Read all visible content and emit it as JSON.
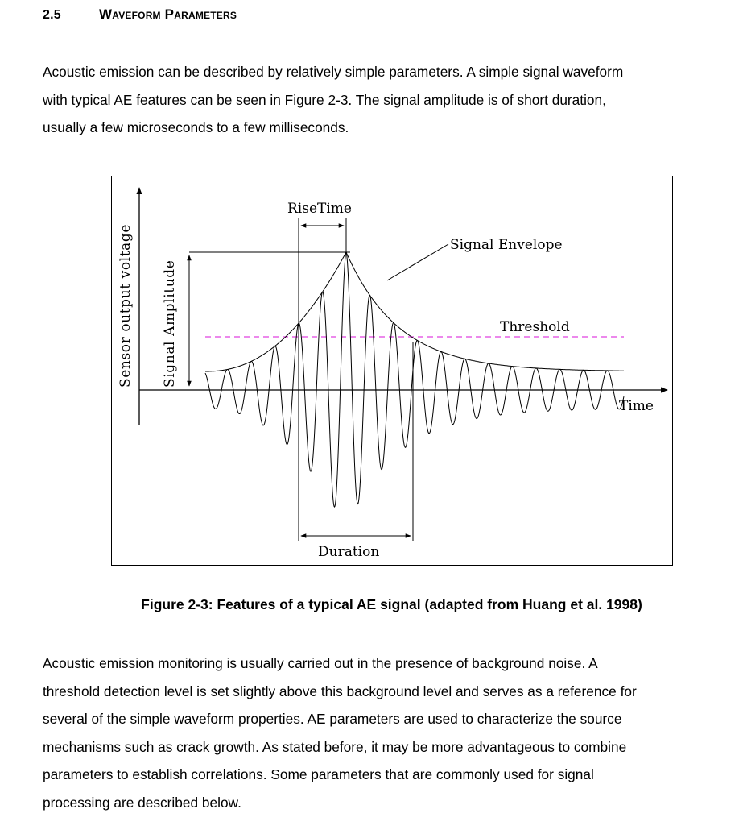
{
  "section": {
    "number": "2.5",
    "title": "Waveform Parameters"
  },
  "paragraph1": [
    "Acoustic emission can be described by relatively simple parameters.  A simple signal waveform",
    "with typical AE features can be seen in Figure 2-3.  The signal amplitude is of short duration,",
    "usually a few microseconds to a few milliseconds."
  ],
  "figure": {
    "labels": {
      "y_axis": "Sensor output voltage",
      "amplitude": "Signal Amplitude",
      "rise_time": "RiseTime",
      "envelope": "Signal Envelope",
      "threshold": "Threshold",
      "x_axis": "Time",
      "duration": "Duration"
    },
    "colors": {
      "threshold_line": "#e040e0",
      "ink": "#000000"
    }
  },
  "caption": "Figure 2-3:  Features of a typical AE signal (adapted from Huang et al. 1998)",
  "paragraph2": [
    "Acoustic emission monitoring is usually carried out in the presence of background noise.  A",
    "threshold detection level is set slightly above this background level and serves as a reference for",
    "several of the simple waveform properties.  AE parameters are used to characterize the source",
    "mechanisms such as crack growth.  As stated before, it may be more advantageous to combine",
    "parameters to establish correlations.  Some parameters that are commonly used for signal",
    "processing are described below."
  ]
}
